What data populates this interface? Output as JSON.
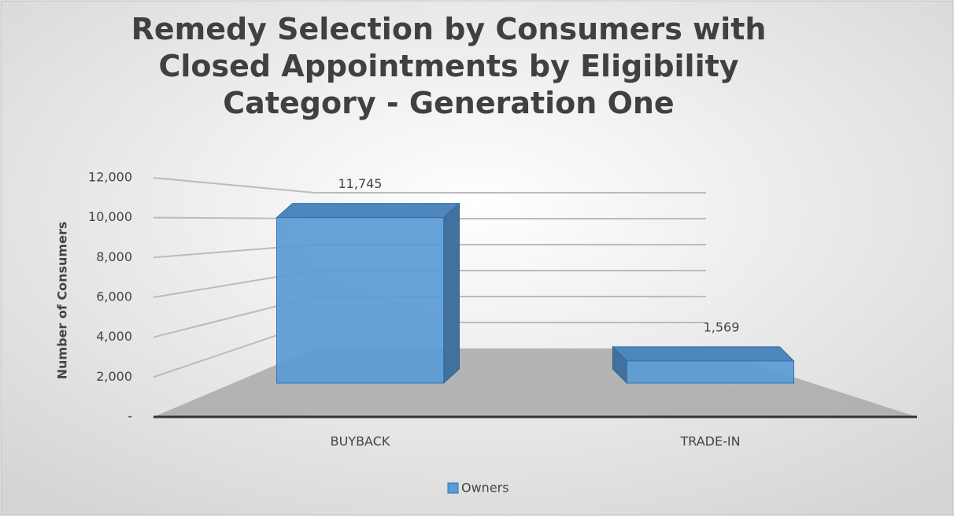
{
  "chart_data": {
    "type": "bar3d",
    "title": "Remedy Selection by Consumers with Closed Appointments by Eligibility Category - Generation One",
    "ylabel": "Number of Consumers",
    "categories": [
      "BUYBACK",
      "TRADE-IN"
    ],
    "series": [
      {
        "name": "Owners",
        "color": "#5b9bd5",
        "values": [
          11745,
          1569
        ],
        "value_labels": [
          "11,745",
          "1,569"
        ]
      }
    ],
    "ylim": [
      0,
      12000
    ],
    "yticks": [
      {
        "value": 0,
        "label": "-"
      },
      {
        "value": 2000,
        "label": "2,000"
      },
      {
        "value": 4000,
        "label": "4,000"
      },
      {
        "value": 6000,
        "label": "6,000"
      },
      {
        "value": 8000,
        "label": "8,000"
      },
      {
        "value": 10000,
        "label": "10,000"
      },
      {
        "value": 12000,
        "label": "12,000"
      }
    ],
    "grid": true,
    "legend": "bottom"
  }
}
